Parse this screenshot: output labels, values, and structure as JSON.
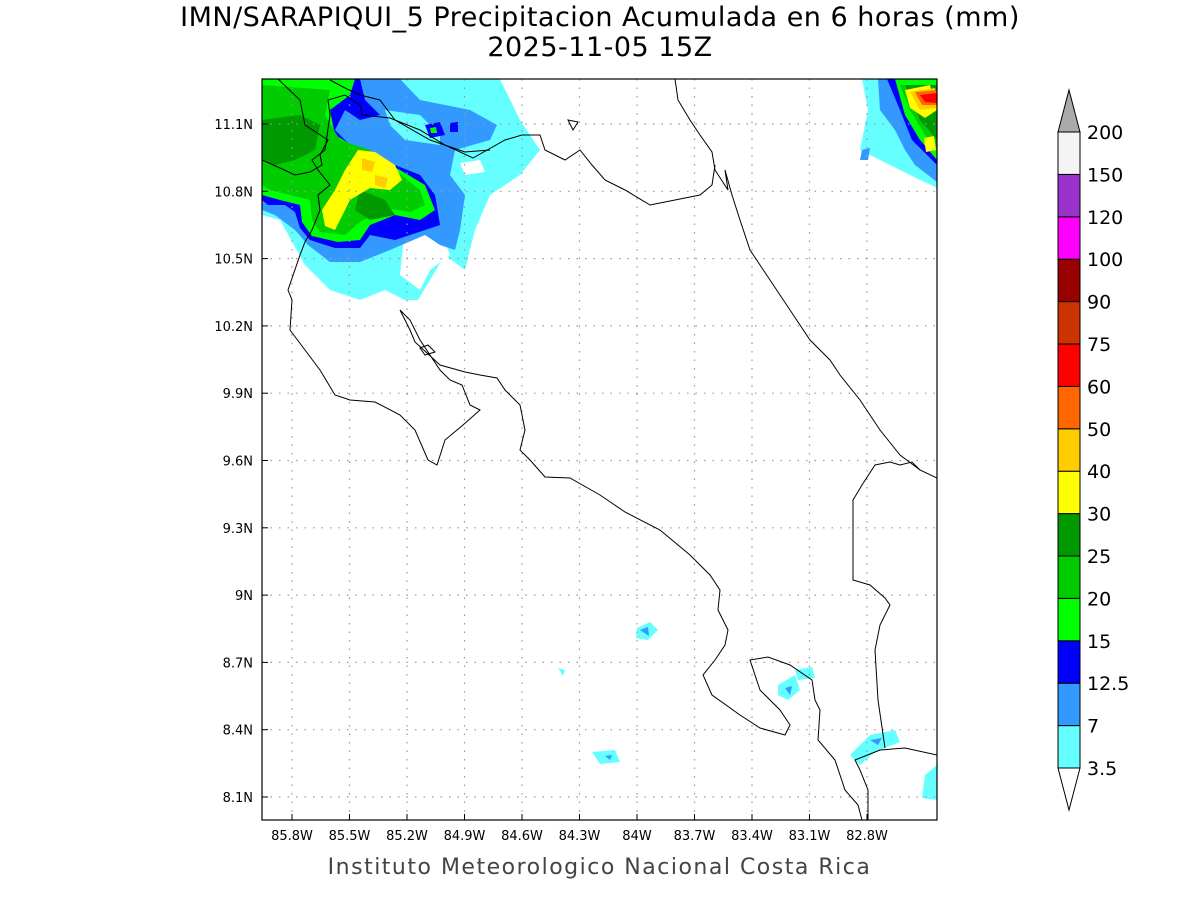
{
  "title": "IMN/SARAPIQUI_5 Precipitacion Acumulada en 6 horas (mm)",
  "subtitle": "2025-11-05 15Z",
  "credit": "Instituto Meteorologico Nacional Costa Rica",
  "map": {
    "region": "Costa Rica",
    "lon_range": [
      "85.96W",
      "82.44W"
    ],
    "lat_range": [
      "8.0N",
      "11.3N"
    ],
    "grid": "dotted",
    "lon_ticks": [
      "85.8W",
      "85.5W",
      "85.2W",
      "84.9W",
      "84.6W",
      "84.3W",
      "84W",
      "83.7W",
      "83.4W",
      "83.1W",
      "82.8W"
    ],
    "lat_ticks": [
      "11.1N",
      "10.8N",
      "10.5N",
      "10.2N",
      "9.9N",
      "9.6N",
      "9.3N",
      "9N",
      "8.7N",
      "8.4N",
      "8.1N"
    ]
  },
  "colorbar": {
    "levels": [
      "3.5",
      "7",
      "12.5",
      "15",
      "20",
      "25",
      "30",
      "40",
      "50",
      "60",
      "75",
      "90",
      "100",
      "120",
      "150",
      "200"
    ],
    "colors": [
      "#66ffff",
      "#3399ff",
      "#0000ff",
      "#00ff00",
      "#00cc00",
      "#009900",
      "#ffff00",
      "#ffcc00",
      "#ff6600",
      "#ff0000",
      "#cc3300",
      "#990000",
      "#ff00ff",
      "#9933cc",
      "#f4f4f4"
    ],
    "under_color": "#ffffff",
    "over_color": "#aaaaaa"
  }
}
